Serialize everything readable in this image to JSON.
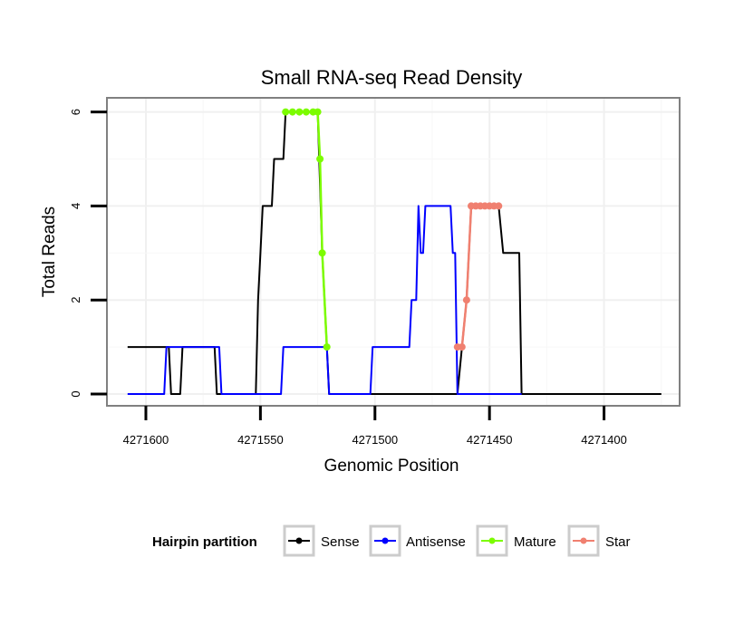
{
  "chart_data": {
    "type": "line",
    "title": "Small RNA-seq Read Density",
    "xlabel": "Genomic Position",
    "ylabel": "Total Reads",
    "xlim": [
      4271617,
      4271367
    ],
    "ylim": [
      -0.25,
      6.3
    ],
    "x_reversed": true,
    "x_ticks": [
      4271600,
      4271550,
      4271500,
      4271450,
      4271400
    ],
    "x_tick_labels": [
      "4271600",
      "4271550",
      "4271500",
      "4271450",
      "4271400"
    ],
    "y_ticks": [
      0,
      2,
      4,
      6
    ],
    "y_tick_labels": [
      "0",
      "2",
      "4",
      "6"
    ],
    "grid": true,
    "legend": {
      "title": "Hairpin partition",
      "position": "bottom",
      "entries": [
        "Sense",
        "Antisense",
        "Mature",
        "Star"
      ]
    },
    "series": [
      {
        "name": "Sense",
        "color": "#000000",
        "points": [
          [
            4271608,
            1
          ],
          [
            4271590,
            1
          ],
          [
            4271589,
            0
          ],
          [
            4271585,
            0
          ],
          [
            4271584,
            1
          ],
          [
            4271570,
            1
          ],
          [
            4271569,
            0
          ],
          [
            4271552,
            0
          ],
          [
            4271551,
            2
          ],
          [
            4271550,
            3
          ],
          [
            4271549,
            4
          ],
          [
            4271545,
            4
          ],
          [
            4271544,
            5
          ],
          [
            4271540,
            5
          ],
          [
            4271539,
            6
          ],
          [
            4271525,
            6
          ],
          [
            4271523,
            3
          ],
          [
            4271521,
            1
          ],
          [
            4271520,
            0
          ],
          [
            4271464,
            0
          ],
          [
            4271462,
            1
          ],
          [
            4271460,
            2
          ],
          [
            4271458,
            4
          ],
          [
            4271446,
            4
          ],
          [
            4271444,
            3
          ],
          [
            4271437,
            3
          ],
          [
            4271436,
            0
          ],
          [
            4271375,
            0
          ]
        ]
      },
      {
        "name": "Antisense",
        "color": "#0000ff",
        "points": [
          [
            4271608,
            0
          ],
          [
            4271592,
            0
          ],
          [
            4271591,
            1
          ],
          [
            4271568,
            1
          ],
          [
            4271567,
            0
          ],
          [
            4271541,
            0
          ],
          [
            4271540,
            1
          ],
          [
            4271521,
            1
          ],
          [
            4271520,
            0
          ],
          [
            4271502,
            0
          ],
          [
            4271501,
            1
          ],
          [
            4271485,
            1
          ],
          [
            4271484,
            2
          ],
          [
            4271482,
            2
          ],
          [
            4271481,
            4
          ],
          [
            4271480,
            3
          ],
          [
            4271479,
            3
          ],
          [
            4271478,
            4
          ],
          [
            4271467,
            4
          ],
          [
            4271466,
            3
          ],
          [
            4271465,
            3
          ],
          [
            4271464,
            0
          ],
          [
            4271436,
            0
          ]
        ]
      },
      {
        "name": "Mature",
        "color": "#7cfc00",
        "points": [
          [
            4271539,
            6
          ],
          [
            4271536,
            6
          ],
          [
            4271533,
            6
          ],
          [
            4271530,
            6
          ],
          [
            4271527,
            6
          ],
          [
            4271525,
            6
          ],
          [
            4271524,
            5
          ],
          [
            4271523,
            3
          ],
          [
            4271521,
            1
          ]
        ]
      },
      {
        "name": "Star",
        "color": "#f08070",
        "points": [
          [
            4271464,
            1
          ],
          [
            4271462,
            1
          ],
          [
            4271460,
            2
          ],
          [
            4271458,
            4
          ],
          [
            4271456,
            4
          ],
          [
            4271454,
            4
          ],
          [
            4271452,
            4
          ],
          [
            4271450,
            4
          ],
          [
            4271448,
            4
          ],
          [
            4271446,
            4
          ]
        ]
      }
    ]
  }
}
